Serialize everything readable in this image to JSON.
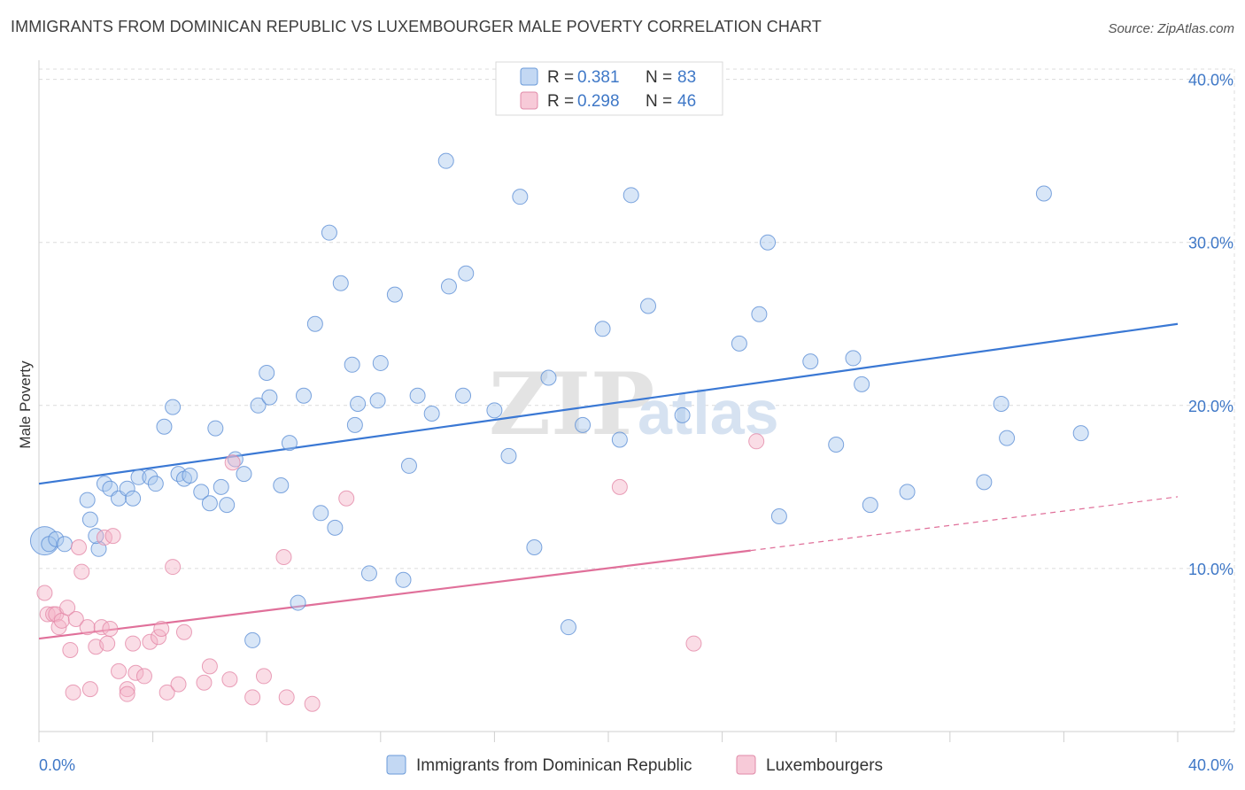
{
  "title": "IMMIGRANTS FROM DOMINICAN REPUBLIC VS LUXEMBOURGER MALE POVERTY CORRELATION CHART",
  "source": "Source: ZipAtlas.com",
  "watermark": {
    "zip": "ZIP",
    "atlas": "atlas"
  },
  "colors": {
    "blue": "#3a78d4",
    "blue_fill": "#a9c8ee",
    "pink": "#e0709a",
    "pink_fill": "#f4b3c8",
    "label": "#3f78c7"
  },
  "legend": {
    "r_label": "R =",
    "n_label": "N =",
    "rows": [
      {
        "r": "0.381",
        "n": "83"
      },
      {
        "r": "0.298",
        "n": "46"
      }
    ]
  },
  "chart_data": {
    "type": "scatter",
    "title": "IMMIGRANTS FROM DOMINICAN REPUBLIC VS LUXEMBOURGER MALE POVERTY CORRELATION CHART",
    "xlabel": "",
    "ylabel": "Male Poverty",
    "xlim": [
      0,
      40
    ],
    "ylim": [
      0,
      41.5
    ],
    "x_tick_labels": [
      "0.0%",
      "40.0%"
    ],
    "y_ticks": [
      10,
      20,
      30,
      40
    ],
    "y_tick_labels": [
      "10.0%",
      "20.0%",
      "30.0%",
      "40.0%"
    ],
    "grid": true,
    "legend_position": "top-center",
    "series": [
      {
        "name": "Immigrants from Dominican Republic",
        "r": 0.381,
        "n": 83,
        "trend": {
          "x0": 0,
          "y0": 15.2,
          "x1": 40,
          "y1": 25.0
        },
        "points": [
          [
            0.2,
            11.7
          ],
          [
            0.35,
            11.5
          ],
          [
            0.6,
            11.8
          ],
          [
            0.9,
            11.5
          ],
          [
            2.1,
            11.2
          ],
          [
            1.7,
            14.2
          ],
          [
            1.8,
            13.0
          ],
          [
            2.0,
            12.0
          ],
          [
            2.3,
            15.2
          ],
          [
            2.5,
            14.9
          ],
          [
            2.8,
            14.3
          ],
          [
            3.1,
            14.9
          ],
          [
            3.3,
            14.3
          ],
          [
            3.5,
            15.6
          ],
          [
            3.9,
            15.6
          ],
          [
            4.1,
            15.2
          ],
          [
            4.4,
            18.7
          ],
          [
            4.7,
            19.9
          ],
          [
            4.9,
            15.8
          ],
          [
            5.1,
            15.5
          ],
          [
            5.3,
            15.7
          ],
          [
            5.7,
            14.7
          ],
          [
            6.0,
            14.0
          ],
          [
            6.2,
            18.6
          ],
          [
            6.4,
            15.0
          ],
          [
            6.6,
            13.9
          ],
          [
            6.9,
            16.7
          ],
          [
            7.2,
            15.8
          ],
          [
            7.7,
            20.0
          ],
          [
            8.1,
            20.5
          ],
          [
            8.0,
            22.0
          ],
          [
            8.5,
            15.1
          ],
          [
            8.8,
            17.7
          ],
          [
            9.1,
            7.9
          ],
          [
            9.3,
            20.6
          ],
          [
            9.7,
            25.0
          ],
          [
            9.9,
            13.4
          ],
          [
            10.2,
            30.6
          ],
          [
            10.4,
            12.5
          ],
          [
            10.6,
            27.5
          ],
          [
            11.0,
            22.5
          ],
          [
            11.1,
            18.8
          ],
          [
            11.2,
            20.1
          ],
          [
            11.6,
            9.7
          ],
          [
            11.9,
            20.3
          ],
          [
            12.0,
            22.6
          ],
          [
            12.5,
            26.8
          ],
          [
            12.8,
            9.3
          ],
          [
            13.0,
            16.3
          ],
          [
            13.3,
            20.6
          ],
          [
            13.8,
            19.5
          ],
          [
            14.3,
            35.0
          ],
          [
            14.4,
            27.3
          ],
          [
            14.9,
            20.6
          ],
          [
            15.0,
            28.1
          ],
          [
            16.0,
            19.7
          ],
          [
            16.5,
            16.9
          ],
          [
            16.9,
            32.8
          ],
          [
            17.4,
            11.3
          ],
          [
            17.9,
            21.7
          ],
          [
            18.6,
            6.4
          ],
          [
            19.1,
            18.8
          ],
          [
            19.8,
            24.7
          ],
          [
            20.4,
            17.9
          ],
          [
            20.8,
            32.9
          ],
          [
            21.4,
            26.1
          ],
          [
            22.6,
            19.4
          ],
          [
            24.6,
            23.8
          ],
          [
            25.3,
            25.6
          ],
          [
            25.6,
            30.0
          ],
          [
            26.0,
            13.2
          ],
          [
            27.1,
            22.7
          ],
          [
            28.0,
            17.6
          ],
          [
            28.6,
            22.9
          ],
          [
            28.9,
            21.3
          ],
          [
            29.2,
            13.9
          ],
          [
            30.5,
            14.7
          ],
          [
            33.2,
            15.3
          ],
          [
            33.8,
            20.1
          ],
          [
            34.0,
            18.0
          ],
          [
            35.3,
            33.0
          ],
          [
            36.6,
            18.3
          ],
          [
            7.5,
            5.6
          ]
        ]
      },
      {
        "name": "Luxembourgers",
        "r": 0.298,
        "n": 46,
        "trend": {
          "x0": 0,
          "y0": 5.7,
          "x1": 25,
          "y1": 11.1
        },
        "trend_extension": {
          "x0": 25,
          "y0": 11.1,
          "x1": 40,
          "y1": 14.4
        },
        "points": [
          [
            0.2,
            8.5
          ],
          [
            0.3,
            7.2
          ],
          [
            0.5,
            7.2
          ],
          [
            0.6,
            7.2
          ],
          [
            0.7,
            6.4
          ],
          [
            0.8,
            6.8
          ],
          [
            1.0,
            7.6
          ],
          [
            1.1,
            5.0
          ],
          [
            1.3,
            6.9
          ],
          [
            1.4,
            11.3
          ],
          [
            1.5,
            9.8
          ],
          [
            1.7,
            6.4
          ],
          [
            1.8,
            2.6
          ],
          [
            2.0,
            5.2
          ],
          [
            2.2,
            6.4
          ],
          [
            2.3,
            11.9
          ],
          [
            2.4,
            5.4
          ],
          [
            2.5,
            6.3
          ],
          [
            2.6,
            12.0
          ],
          [
            2.8,
            3.7
          ],
          [
            3.1,
            2.6
          ],
          [
            3.3,
            5.4
          ],
          [
            3.1,
            2.3
          ],
          [
            3.4,
            3.6
          ],
          [
            3.7,
            3.4
          ],
          [
            3.9,
            5.5
          ],
          [
            4.2,
            5.8
          ],
          [
            4.3,
            6.3
          ],
          [
            4.5,
            2.4
          ],
          [
            4.7,
            10.1
          ],
          [
            4.9,
            2.9
          ],
          [
            5.1,
            6.1
          ],
          [
            5.8,
            3.0
          ],
          [
            6.0,
            4.0
          ],
          [
            6.7,
            3.2
          ],
          [
            6.8,
            16.5
          ],
          [
            7.5,
            2.1
          ],
          [
            7.9,
            3.4
          ],
          [
            8.6,
            10.7
          ],
          [
            8.7,
            2.1
          ],
          [
            9.6,
            1.7
          ],
          [
            10.8,
            14.3
          ],
          [
            20.4,
            15.0
          ],
          [
            23.0,
            5.4
          ],
          [
            25.2,
            17.8
          ],
          [
            1.2,
            2.4
          ]
        ]
      }
    ]
  }
}
